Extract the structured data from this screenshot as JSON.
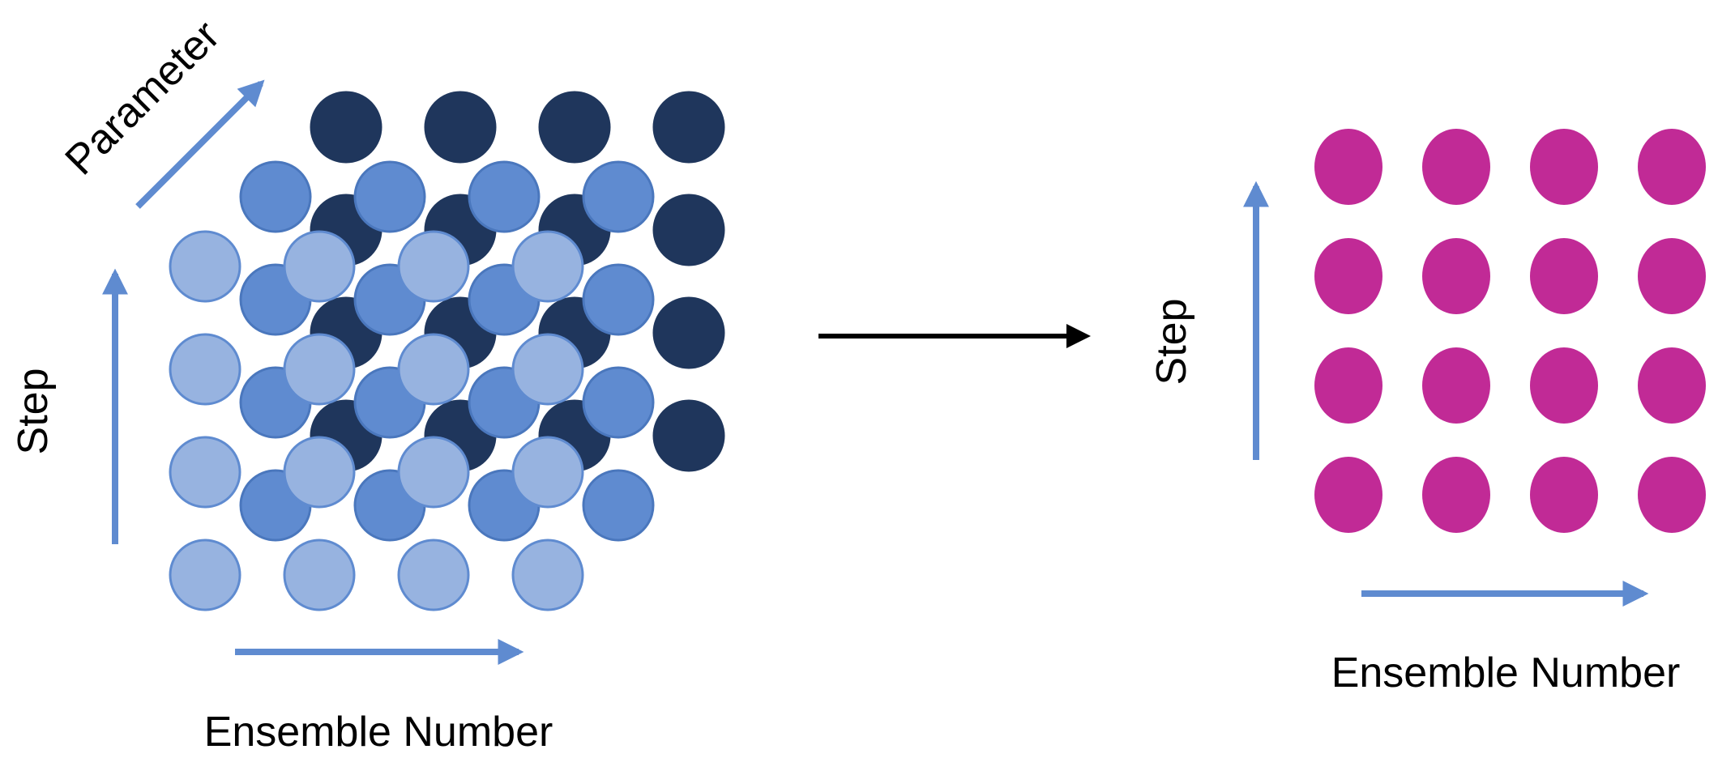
{
  "left_panel": {
    "labels": {
      "x": "Ensemble Number",
      "y": "Step",
      "z": "Parameter"
    },
    "grid": {
      "ensemble_count": 4,
      "step_count": 4,
      "parameter_layers": 3
    },
    "layer_colors": [
      "#97b3e0",
      "#5f8bd0",
      "#1f365c"
    ],
    "stroke_colors": [
      "#5f8bd0",
      "#4a77bd",
      "#1f365c"
    ]
  },
  "transform_arrow": {
    "color": "#000000"
  },
  "right_panel": {
    "labels": {
      "x": "Ensemble Number",
      "y": "Step"
    },
    "grid": {
      "ensemble_count": 4,
      "step_count": 4
    },
    "dot_color": "#c12a96"
  },
  "axis_arrow_color": "#5f8bd0"
}
